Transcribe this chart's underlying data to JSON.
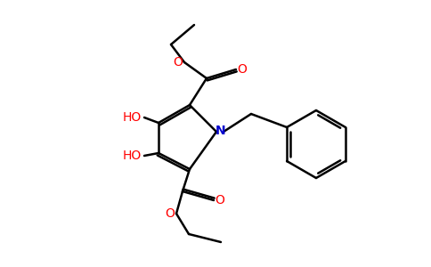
{
  "background_color": "#ffffff",
  "atom_colors": {
    "O": "#ff0000",
    "N": "#0000cd",
    "C": "#000000"
  },
  "line_color": "#000000",
  "line_width": 1.8,
  "figsize": [
    4.84,
    3.0
  ],
  "dpi": 100
}
